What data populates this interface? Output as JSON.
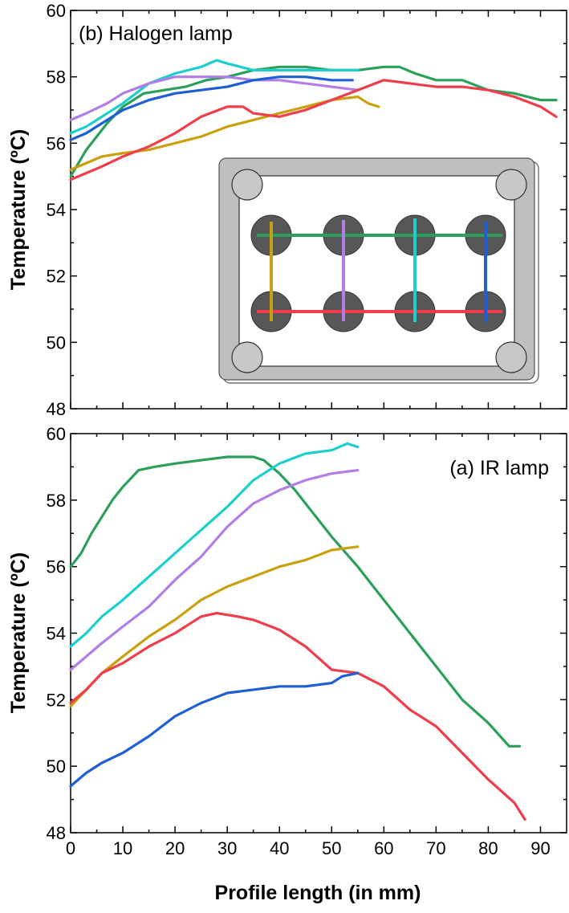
{
  "xlabel": "Profile length (in mm)",
  "colors": {
    "green": "#2ca05a",
    "cyan": "#1ccfcc",
    "purple": "#b07ee6",
    "gold": "#c9a10e",
    "red": "#ef3d4a",
    "blue": "#1f5fd6"
  },
  "chart_data": [
    {
      "type": "line",
      "title": "(b) Halogen lamp",
      "xlabel": "Profile length (in mm)",
      "ylabel": "Temperature (ºC)",
      "xlim": [
        0,
        95
      ],
      "ylim": [
        48,
        60
      ],
      "xticks": [
        0,
        10,
        20,
        30,
        40,
        50,
        60,
        70,
        80,
        90
      ],
      "yticks": [
        48,
        50,
        52,
        54,
        56,
        58,
        60
      ],
      "grid": false,
      "inset": "sample diagram with eight circular spots and colored measurement profiles",
      "series": [
        {
          "color": "green",
          "x": [
            0,
            3,
            7,
            10,
            14,
            18,
            22,
            26,
            30,
            35,
            40,
            45,
            50,
            55,
            60,
            63,
            66,
            70,
            75,
            80,
            85,
            90,
            93
          ],
          "y": [
            55.0,
            55.8,
            56.6,
            57.1,
            57.5,
            57.6,
            57.7,
            57.9,
            58.0,
            58.2,
            58.3,
            58.3,
            58.2,
            58.2,
            58.3,
            58.3,
            58.1,
            57.9,
            57.9,
            57.6,
            57.5,
            57.3,
            57.3
          ]
        },
        {
          "color": "cyan",
          "x": [
            0,
            3,
            6,
            10,
            15,
            20,
            25,
            28,
            30,
            35,
            40,
            45,
            50,
            55
          ],
          "y": [
            56.3,
            56.5,
            56.8,
            57.2,
            57.8,
            58.1,
            58.3,
            58.5,
            58.4,
            58.2,
            58.2,
            58.2,
            58.2,
            58.2
          ]
        },
        {
          "color": "purple",
          "x": [
            0,
            3,
            7,
            10,
            15,
            20,
            25,
            30,
            35,
            40,
            45,
            50,
            55
          ],
          "y": [
            56.7,
            56.9,
            57.2,
            57.5,
            57.8,
            58.0,
            58.0,
            58.0,
            57.9,
            57.9,
            57.8,
            57.7,
            57.6
          ]
        },
        {
          "color": "blue",
          "x": [
            0,
            3,
            6,
            10,
            15,
            20,
            25,
            30,
            35,
            40,
            45,
            50,
            54
          ],
          "y": [
            56.1,
            56.3,
            56.6,
            57.0,
            57.3,
            57.5,
            57.6,
            57.7,
            57.9,
            58.0,
            58.0,
            57.9,
            57.9
          ]
        },
        {
          "color": "gold",
          "x": [
            0,
            3,
            6,
            10,
            15,
            20,
            25,
            30,
            35,
            40,
            45,
            50,
            55,
            57,
            59
          ],
          "y": [
            55.2,
            55.4,
            55.6,
            55.7,
            55.8,
            56.0,
            56.2,
            56.5,
            56.7,
            56.9,
            57.1,
            57.3,
            57.4,
            57.2,
            57.1
          ]
        },
        {
          "color": "red",
          "x": [
            0,
            3,
            6,
            10,
            15,
            20,
            25,
            30,
            33,
            35,
            40,
            45,
            50,
            55,
            60,
            65,
            70,
            75,
            80,
            85,
            90,
            93
          ],
          "y": [
            54.9,
            55.1,
            55.3,
            55.6,
            55.9,
            56.3,
            56.8,
            57.1,
            57.1,
            56.9,
            56.8,
            57.0,
            57.3,
            57.6,
            57.9,
            57.8,
            57.7,
            57.7,
            57.6,
            57.4,
            57.1,
            56.8
          ]
        }
      ]
    },
    {
      "type": "line",
      "title": "(a) IR lamp",
      "xlabel": "Profile length (in mm)",
      "ylabel": "Temperature (ºC)",
      "xlim": [
        0,
        95
      ],
      "ylim": [
        48,
        60
      ],
      "xticks": [
        0,
        10,
        20,
        30,
        40,
        50,
        60,
        70,
        80,
        90
      ],
      "yticks": [
        48,
        50,
        52,
        54,
        56,
        58,
        60
      ],
      "grid": false,
      "series": [
        {
          "color": "green",
          "x": [
            0,
            2,
            4,
            6,
            8,
            10,
            13,
            16,
            20,
            25,
            30,
            35,
            37,
            40,
            43,
            46,
            50,
            55,
            60,
            65,
            70,
            75,
            80,
            84,
            86
          ],
          "y": [
            56.0,
            56.4,
            57.0,
            57.5,
            58.0,
            58.4,
            58.9,
            59.0,
            59.1,
            59.2,
            59.3,
            59.3,
            59.2,
            58.8,
            58.3,
            57.7,
            56.9,
            56.0,
            55.0,
            54.0,
            53.0,
            52.0,
            51.3,
            50.6,
            50.6
          ]
        },
        {
          "color": "cyan",
          "x": [
            0,
            3,
            6,
            10,
            15,
            20,
            25,
            30,
            35,
            40,
            45,
            50,
            53,
            55
          ],
          "y": [
            53.6,
            54.0,
            54.5,
            55.0,
            55.7,
            56.4,
            57.1,
            57.8,
            58.6,
            59.1,
            59.4,
            59.5,
            59.7,
            59.6
          ]
        },
        {
          "color": "purple",
          "x": [
            0,
            3,
            6,
            10,
            15,
            20,
            25,
            30,
            35,
            40,
            45,
            50,
            55
          ],
          "y": [
            52.9,
            53.3,
            53.7,
            54.2,
            54.8,
            55.6,
            56.3,
            57.2,
            57.9,
            58.3,
            58.6,
            58.8,
            58.9
          ]
        },
        {
          "color": "gold",
          "x": [
            0,
            3,
            6,
            10,
            15,
            20,
            25,
            30,
            35,
            40,
            45,
            50,
            55
          ],
          "y": [
            51.8,
            52.3,
            52.8,
            53.3,
            53.9,
            54.4,
            55.0,
            55.4,
            55.7,
            56.0,
            56.2,
            56.5,
            56.6
          ]
        },
        {
          "color": "red",
          "x": [
            0,
            3,
            6,
            10,
            15,
            20,
            25,
            28,
            32,
            35,
            40,
            45,
            50,
            55,
            60,
            65,
            70,
            75,
            80,
            85,
            87
          ],
          "y": [
            51.9,
            52.3,
            52.8,
            53.1,
            53.6,
            54.0,
            54.5,
            54.6,
            54.5,
            54.4,
            54.1,
            53.6,
            52.9,
            52.8,
            52.4,
            51.7,
            51.2,
            50.4,
            49.6,
            48.9,
            48.4
          ]
        },
        {
          "color": "blue",
          "x": [
            0,
            3,
            6,
            10,
            15,
            20,
            25,
            30,
            35,
            40,
            45,
            50,
            52,
            55
          ],
          "y": [
            49.4,
            49.8,
            50.1,
            50.4,
            50.9,
            51.5,
            51.9,
            52.2,
            52.3,
            52.4,
            52.4,
            52.5,
            52.7,
            52.8
          ]
        }
      ]
    }
  ]
}
